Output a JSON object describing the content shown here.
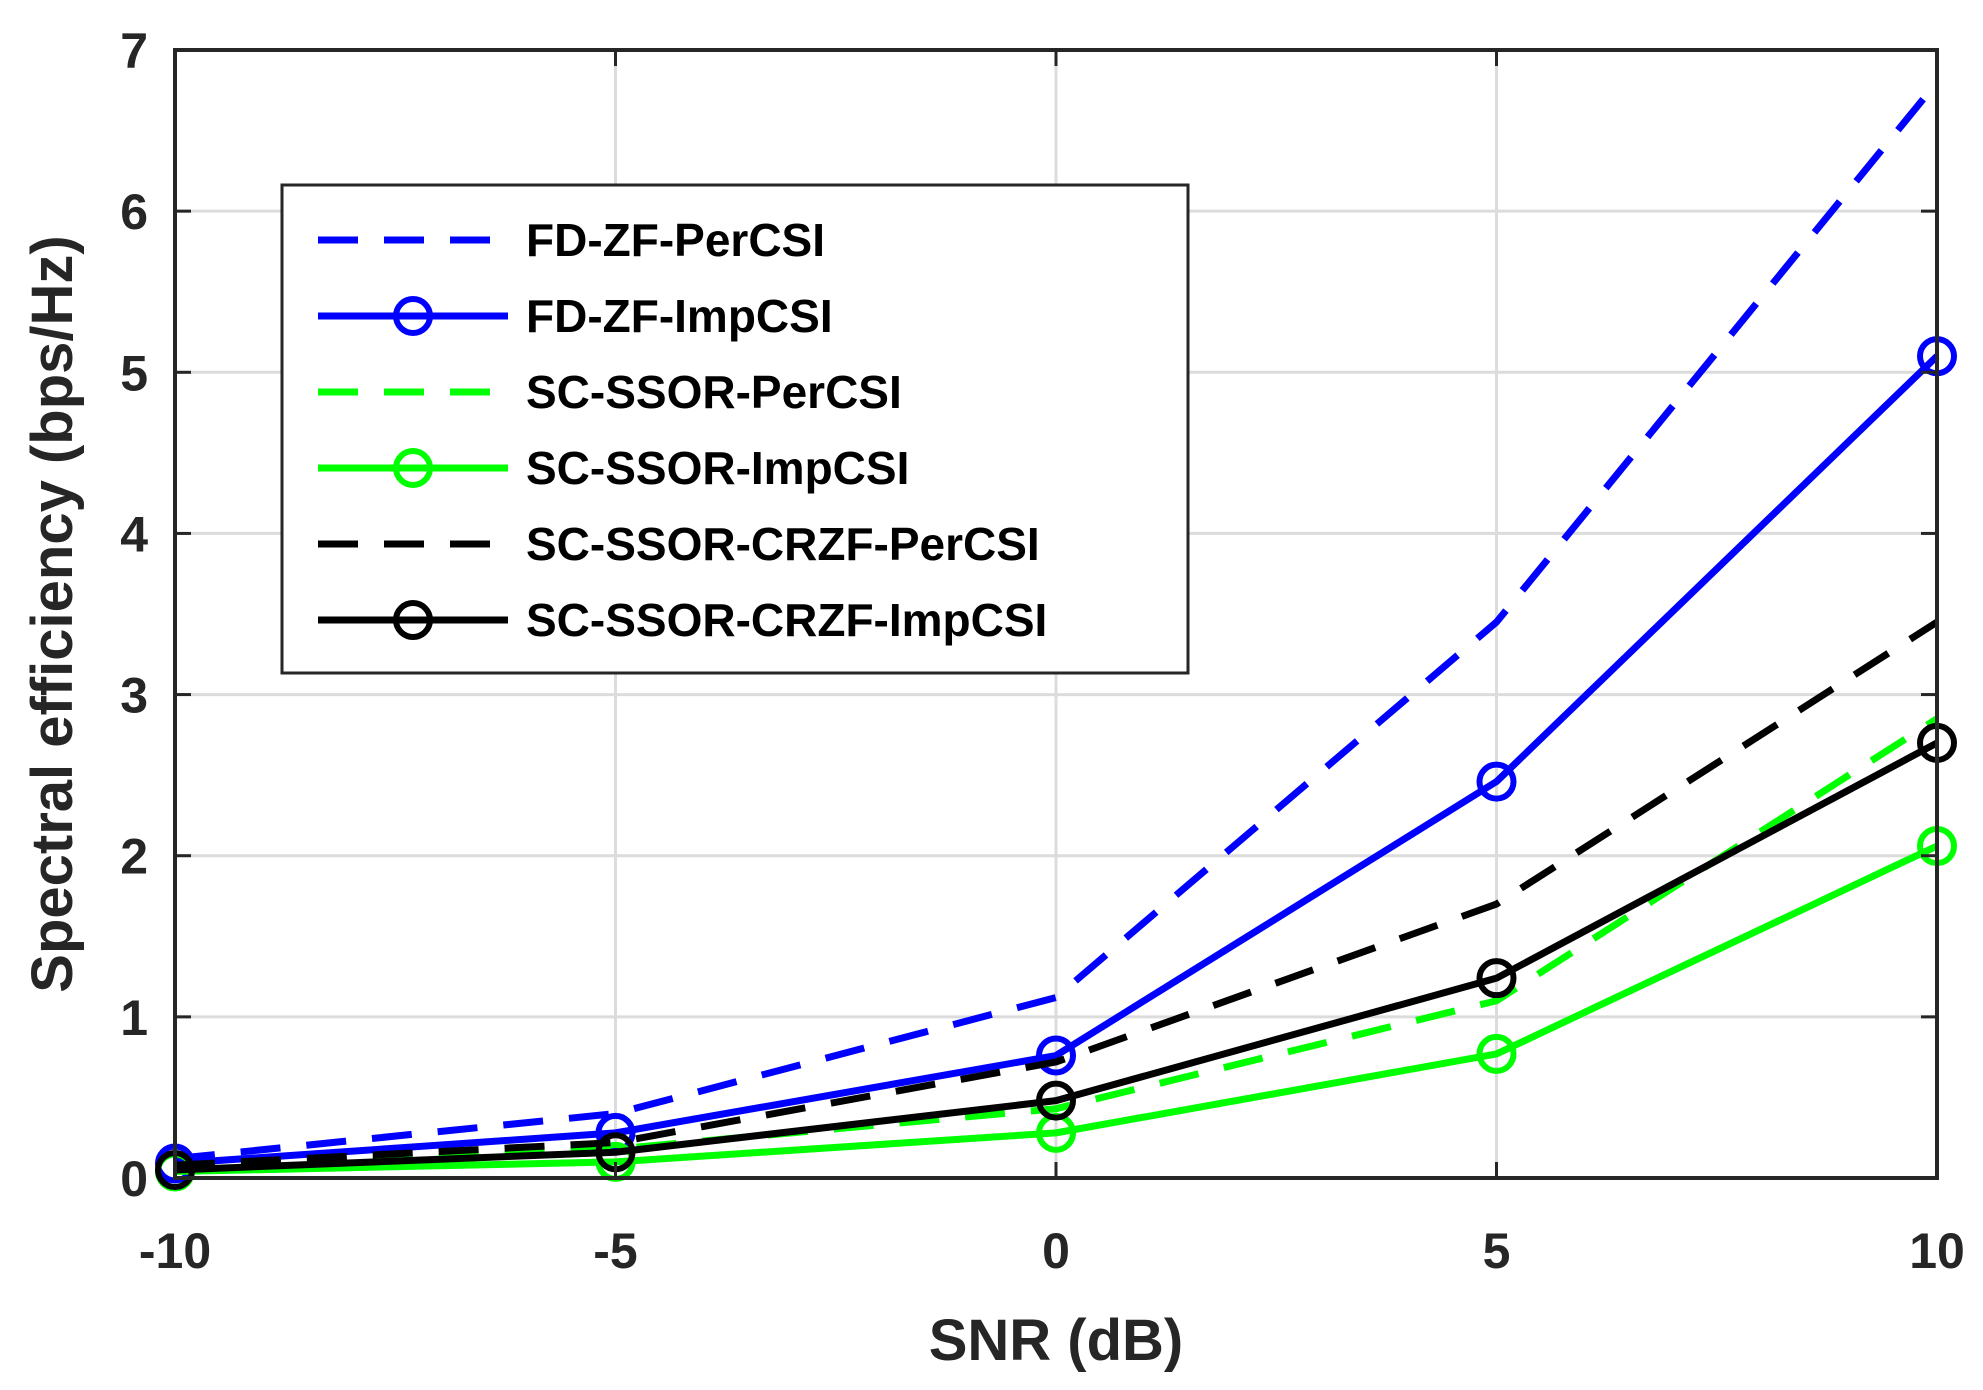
{
  "chart_data": {
    "type": "line",
    "title": "",
    "xlabel": "SNR (dB)",
    "ylabel": "Spectral efficiency (bps/Hz)",
    "xlim": [
      -10,
      10
    ],
    "ylim": [
      0,
      7
    ],
    "xticks": [
      -10,
      -5,
      0,
      5,
      10
    ],
    "yticks": [
      0,
      1,
      2,
      3,
      4,
      5,
      6,
      7
    ],
    "xtick_labels": [
      "-10",
      "-5",
      "0",
      "5",
      "10"
    ],
    "ytick_labels": [
      "0",
      "1",
      "2",
      "3",
      "4",
      "5",
      "6",
      "7"
    ],
    "grid": true,
    "legend_position": "upper-left",
    "x": [
      -10,
      -5,
      0,
      5,
      10
    ],
    "series": [
      {
        "name": "FD-ZF-PerCSI",
        "values": [
          0.12,
          0.4,
          1.12,
          3.45,
          6.8
        ],
        "color": "#0000ff",
        "dash": true,
        "marker": "none"
      },
      {
        "name": "FD-ZF-ImpCSI",
        "values": [
          0.09,
          0.28,
          0.76,
          2.46,
          5.1
        ],
        "color": "#0000ff",
        "dash": false,
        "marker": "circle"
      },
      {
        "name": "SC-SSOR-PerCSI",
        "values": [
          0.06,
          0.18,
          0.43,
          1.1,
          2.85
        ],
        "color": "#00ff00",
        "dash": true,
        "marker": "none"
      },
      {
        "name": "SC-SSOR-ImpCSI",
        "values": [
          0.04,
          0.1,
          0.28,
          0.77,
          2.06
        ],
        "color": "#00ff00",
        "dash": false,
        "marker": "circle"
      },
      {
        "name": "SC-SSOR-CRZF-PerCSI",
        "values": [
          0.08,
          0.22,
          0.72,
          1.7,
          3.45
        ],
        "color": "#000000",
        "dash": true,
        "marker": "none"
      },
      {
        "name": "SC-SSOR-CRZF-ImpCSI",
        "values": [
          0.05,
          0.16,
          0.48,
          1.24,
          2.7
        ],
        "color": "#000000",
        "dash": false,
        "marker": "circle"
      }
    ]
  }
}
